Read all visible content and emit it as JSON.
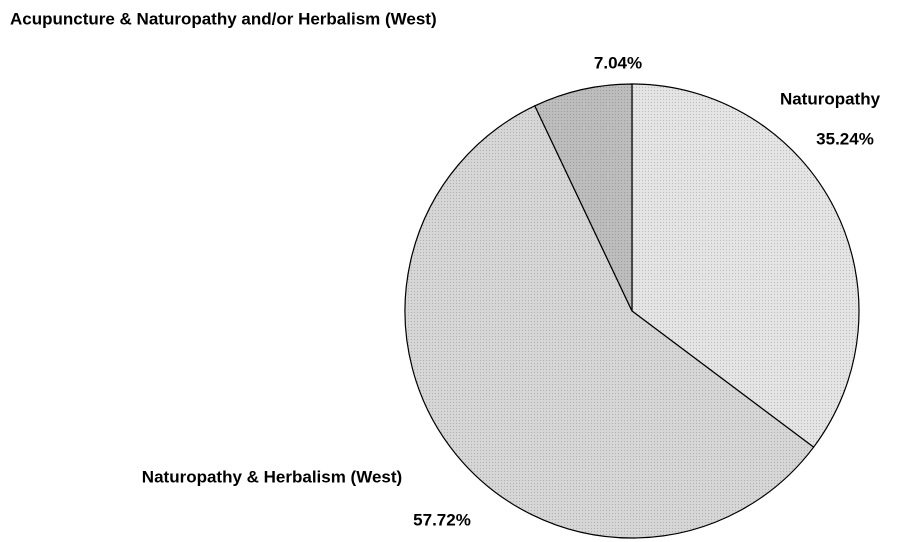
{
  "chart_data": {
    "type": "pie",
    "categories": [
      "Naturopathy",
      "Naturopathy & Herbalism (West)",
      "Acupuncture & Naturopathy and/or Herbalism (West)"
    ],
    "values": [
      35.24,
      57.72,
      7.04
    ],
    "value_labels": [
      "35.24%",
      "57.72%",
      "7.04%"
    ],
    "colors": [
      "#e4e4e4",
      "#d6d6d6",
      "#bdbdbd"
    ],
    "start_angle": 90,
    "direction": "clockwise"
  }
}
